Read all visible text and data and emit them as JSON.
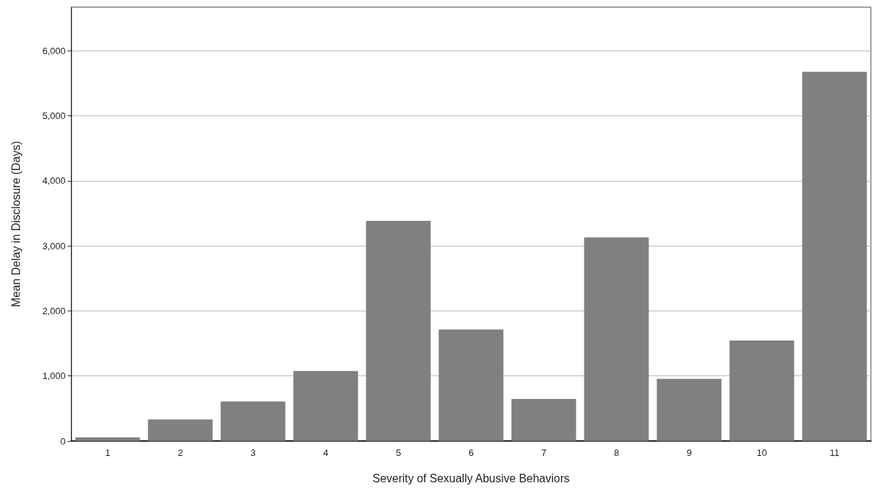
{
  "chart_data": {
    "type": "bar",
    "xlabel": "Severity of Sexually Abusive Behaviors",
    "ylabel": "Mean Delay in Disclosure (Days)",
    "categories": [
      "1",
      "2",
      "3",
      "4",
      "5",
      "6",
      "7",
      "8",
      "9",
      "10",
      "11"
    ],
    "values": [
      55,
      332,
      609,
      1075,
      3384,
      1714,
      646,
      3129,
      955,
      1543,
      5676
    ],
    "color": "#808080",
    "ylim": [
      0,
      6670
    ],
    "yticks": [
      {
        "value": 0,
        "label": "0"
      },
      {
        "value": 1000,
        "label": "1,000"
      },
      {
        "value": 2000,
        "label": "2,000"
      },
      {
        "value": 3000,
        "label": "3,000"
      },
      {
        "value": 4000,
        "label": "4,000"
      },
      {
        "value": 5000,
        "label": "5,000"
      },
      {
        "value": 6000,
        "label": "6,000"
      }
    ],
    "grid": "y"
  }
}
